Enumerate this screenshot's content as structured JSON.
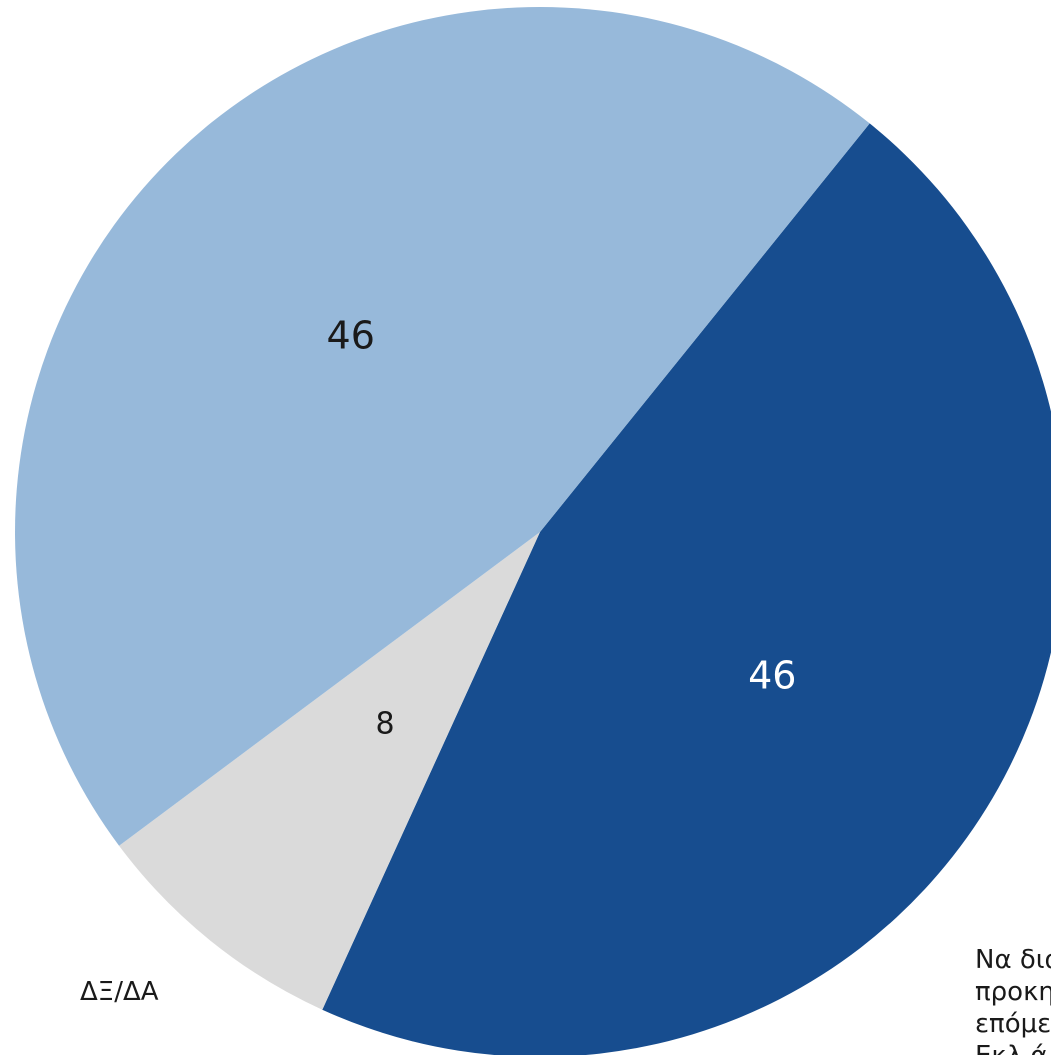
{
  "chart_data": {
    "type": "pie",
    "title": "",
    "slices": [
      {
        "label": "",
        "value": 46,
        "value_label": "46",
        "color": "#174D8F",
        "label_color": "#FFFFFF"
      },
      {
        "label": "ΔΞ/ΔΑ",
        "value": 8,
        "value_label": "8",
        "color": "#DADADA",
        "label_color": "#1A1A1A"
      },
      {
        "label": "",
        "value": 46,
        "value_label": "46",
        "color": "#97B9DA",
        "label_color": "#1A1A1A"
      }
    ]
  },
  "side_text": {
    "lines": [
      "Να δια",
      "προκη",
      "επόμε",
      "Εκλ ά"
    ]
  }
}
